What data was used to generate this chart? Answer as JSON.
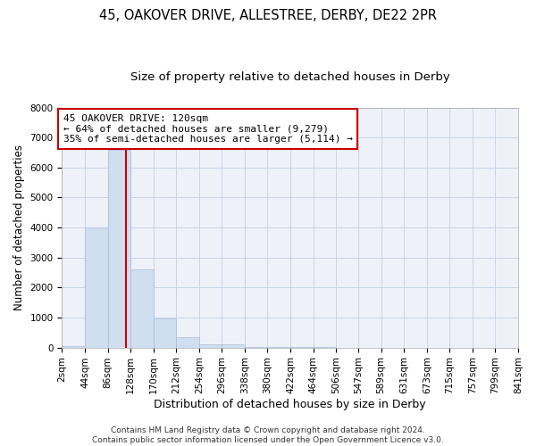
{
  "title1": "45, OAKOVER DRIVE, ALLESTREE, DERBY, DE22 2PR",
  "title2": "Size of property relative to detached houses in Derby",
  "xlabel": "Distribution of detached houses by size in Derby",
  "ylabel": "Number of detached properties",
  "bar_color": "#d0dff0",
  "bar_edgecolor": "#aabbdd",
  "grid_color": "#c8d4e8",
  "background_color": "#eef2f8",
  "vline_color": "#cc0000",
  "vline_x": 120,
  "annotation_text": "45 OAKOVER DRIVE: 120sqm\n← 64% of detached houses are smaller (9,279)\n35% of semi-detached houses are larger (5,114) →",
  "annotation_boxcolor": "white",
  "annotation_edgecolor": "#cc0000",
  "bin_edges": [
    2,
    44,
    86,
    128,
    170,
    212,
    254,
    296,
    338,
    380,
    422,
    464,
    506,
    547,
    589,
    631,
    673,
    715,
    757,
    799,
    841
  ],
  "bar_heights": [
    60,
    4000,
    6600,
    2600,
    960,
    340,
    120,
    110,
    30,
    5,
    5,
    3,
    2,
    1,
    1,
    0,
    0,
    0,
    0,
    0
  ],
  "ylim": [
    0,
    8000
  ],
  "yticks": [
    0,
    1000,
    2000,
    3000,
    4000,
    5000,
    6000,
    7000,
    8000
  ],
  "footer_text": "Contains HM Land Registry data © Crown copyright and database right 2024.\nContains public sector information licensed under the Open Government Licence v3.0.",
  "title1_fontsize": 10.5,
  "title2_fontsize": 9.5,
  "xlabel_fontsize": 9,
  "ylabel_fontsize": 8.5,
  "tick_fontsize": 7.5,
  "annot_fontsize": 8,
  "footer_fontsize": 6.5
}
